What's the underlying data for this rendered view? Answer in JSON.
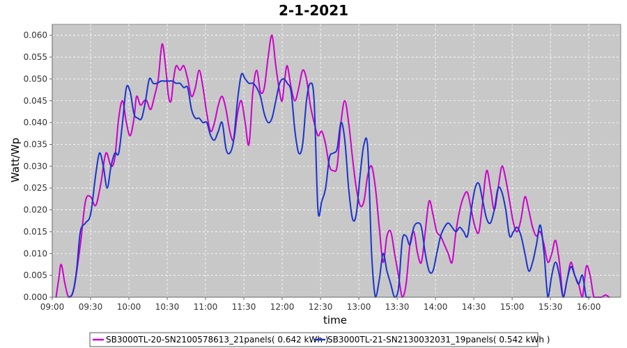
{
  "chart_data": {
    "type": "line",
    "title": "2-1-2021",
    "xlabel": "time",
    "ylabel": "Watt/Wp",
    "xlim": [
      "09:00",
      "16:25"
    ],
    "ylim": [
      0,
      0.0625
    ],
    "x_ticks": [
      "09:00",
      "09:30",
      "10:00",
      "10:30",
      "11:00",
      "11:30",
      "12:00",
      "12:30",
      "13:00",
      "13:30",
      "14:00",
      "14:30",
      "15:00",
      "15:30",
      "16:00"
    ],
    "y_ticks": [
      "0.000",
      "0.005",
      "0.010",
      "0.015",
      "0.020",
      "0.025",
      "0.030",
      "0.035",
      "0.040",
      "0.045",
      "0.050",
      "0.055",
      "0.060"
    ],
    "grid": true,
    "legend_position": "bottom",
    "series": [
      {
        "name": "SB3000TL-20-SN2100578613_21panels( 0.642 kWh )",
        "color": "#cc00cc",
        "x": [
          "09:03",
          "09:05",
          "09:07",
          "09:10",
          "09:13",
          "09:17",
          "09:22",
          "09:26",
          "09:30",
          "09:34",
          "09:38",
          "09:42",
          "09:46",
          "09:49",
          "09:52",
          "09:55",
          "09:58",
          "10:01",
          "10:04",
          "10:06",
          "10:09",
          "10:12",
          "10:14",
          "10:17",
          "10:20",
          "10:23",
          "10:26",
          "10:29",
          "10:31",
          "10:33",
          "10:35",
          "10:37",
          "10:40",
          "10:43",
          "10:46",
          "10:49",
          "10:52",
          "10:55",
          "10:58",
          "11:01",
          "11:04",
          "11:07",
          "11:10",
          "11:13",
          "11:16",
          "11:19",
          "11:22",
          "11:25",
          "11:28",
          "11:31",
          "11:34",
          "11:37",
          "11:40",
          "11:43",
          "11:46",
          "11:49",
          "11:52",
          "11:55",
          "11:58",
          "12:00",
          "12:02",
          "12:04",
          "12:07",
          "12:10",
          "12:13",
          "12:16",
          "12:19",
          "12:22",
          "12:25",
          "12:28",
          "12:31",
          "12:34",
          "12:37",
          "12:40",
          "12:43",
          "12:46",
          "12:49",
          "12:52",
          "12:55",
          "12:58",
          "13:01",
          "13:04",
          "13:07",
          "13:10",
          "13:13",
          "13:16",
          "13:19",
          "13:22",
          "13:25",
          "13:28",
          "13:31",
          "13:34",
          "13:37",
          "13:40",
          "13:43",
          "13:46",
          "13:49",
          "13:52",
          "13:55",
          "13:58",
          "14:01",
          "14:04",
          "14:07",
          "14:10",
          "14:13",
          "14:16",
          "14:19",
          "14:22",
          "14:25",
          "14:28",
          "14:31",
          "14:34",
          "14:37",
          "14:40",
          "14:43",
          "14:46",
          "14:49",
          "14:52",
          "14:55",
          "14:58",
          "15:01",
          "15:04",
          "15:07",
          "15:10",
          "15:13",
          "15:16",
          "15:19",
          "15:22",
          "15:25",
          "15:28",
          "15:31",
          "15:34",
          "15:37",
          "15:40",
          "15:43",
          "15:46",
          "15:49",
          "15:52",
          "15:55",
          "15:58",
          "16:01",
          "16:04",
          "16:07",
          "16:10",
          "16:13",
          "16:16"
        ],
        "y": [
          0.0,
          0.004,
          0.0075,
          0.003,
          0.0,
          0.002,
          0.012,
          0.022,
          0.023,
          0.021,
          0.026,
          0.033,
          0.03,
          0.032,
          0.041,
          0.045,
          0.04,
          0.037,
          0.041,
          0.046,
          0.044,
          0.045,
          0.045,
          0.043,
          0.046,
          0.05,
          0.058,
          0.052,
          0.046,
          0.045,
          0.05,
          0.053,
          0.052,
          0.053,
          0.05,
          0.046,
          0.048,
          0.052,
          0.048,
          0.042,
          0.038,
          0.04,
          0.044,
          0.046,
          0.043,
          0.038,
          0.036,
          0.042,
          0.045,
          0.04,
          0.035,
          0.047,
          0.052,
          0.047,
          0.048,
          0.055,
          0.06,
          0.053,
          0.047,
          0.045,
          0.05,
          0.053,
          0.048,
          0.045,
          0.048,
          0.052,
          0.05,
          0.044,
          0.04,
          0.037,
          0.038,
          0.035,
          0.03,
          0.029,
          0.03,
          0.04,
          0.045,
          0.04,
          0.032,
          0.025,
          0.021,
          0.022,
          0.028,
          0.03,
          0.025,
          0.016,
          0.008,
          0.014,
          0.015,
          0.01,
          0.005,
          0.0,
          0.003,
          0.012,
          0.015,
          0.01,
          0.008,
          0.015,
          0.022,
          0.019,
          0.015,
          0.014,
          0.012,
          0.01,
          0.008,
          0.015,
          0.02,
          0.023,
          0.024,
          0.02,
          0.016,
          0.015,
          0.022,
          0.029,
          0.025,
          0.02,
          0.025,
          0.03,
          0.027,
          0.022,
          0.017,
          0.015,
          0.018,
          0.023,
          0.02,
          0.016,
          0.014,
          0.015,
          0.012,
          0.008,
          0.01,
          0.013,
          0.008,
          0.0,
          0.004,
          0.008,
          0.005,
          0.003,
          0.0,
          0.007,
          0.005,
          0.0,
          0.0,
          0.0,
          0.0005,
          0.0
        ]
      },
      {
        "name": "SB3000TL-21-SN2130032031_19panels( 0.542 kWh )",
        "color": "#1a33cc",
        "x": [
          "09:13",
          "09:16",
          "09:19",
          "09:22",
          "09:26",
          "09:30",
          "09:34",
          "09:37",
          "09:40",
          "09:43",
          "09:46",
          "09:49",
          "09:52",
          "09:55",
          "09:58",
          "10:01",
          "10:04",
          "10:07",
          "10:10",
          "10:13",
          "10:16",
          "10:19",
          "10:22",
          "10:25",
          "10:28",
          "10:31",
          "10:34",
          "10:37",
          "10:40",
          "10:43",
          "10:46",
          "10:49",
          "10:52",
          "10:55",
          "10:58",
          "11:01",
          "11:04",
          "11:07",
          "11:10",
          "11:13",
          "11:16",
          "11:19",
          "11:22",
          "11:25",
          "11:28",
          "11:31",
          "11:34",
          "11:37",
          "11:40",
          "11:43",
          "11:46",
          "11:49",
          "11:52",
          "11:55",
          "11:58",
          "12:01",
          "12:04",
          "12:07",
          "12:10",
          "12:13",
          "12:16",
          "12:19",
          "12:22",
          "12:25",
          "12:28",
          "12:31",
          "12:34",
          "12:37",
          "12:40",
          "12:43",
          "12:46",
          "12:49",
          "12:52",
          "12:55",
          "12:58",
          "13:01",
          "13:04",
          "13:07",
          "13:10",
          "13:13",
          "13:16",
          "13:19",
          "13:22",
          "13:25",
          "13:28",
          "13:31",
          "13:34",
          "13:37",
          "13:40",
          "13:43",
          "13:46",
          "13:49",
          "13:52",
          "13:55",
          "13:58",
          "14:01",
          "14:04",
          "14:07",
          "14:10",
          "14:13",
          "14:16",
          "14:19",
          "14:22",
          "14:25",
          "14:28",
          "14:31",
          "14:34",
          "14:37",
          "14:40",
          "14:43",
          "14:46",
          "14:49",
          "14:52",
          "14:55",
          "14:58",
          "15:01",
          "15:04",
          "15:07",
          "15:10",
          "15:13",
          "15:16",
          "15:19",
          "15:22",
          "15:25",
          "15:28",
          "15:31",
          "15:34",
          "15:37",
          "15:40",
          "15:43",
          "15:46",
          "15:49",
          "15:52",
          "15:55",
          "15:58",
          "16:01"
        ],
        "y": [
          0.0,
          0.001,
          0.006,
          0.015,
          0.017,
          0.019,
          0.028,
          0.033,
          0.03,
          0.025,
          0.03,
          0.033,
          0.033,
          0.04,
          0.048,
          0.047,
          0.042,
          0.041,
          0.041,
          0.045,
          0.05,
          0.049,
          0.049,
          0.0495,
          0.0495,
          0.0495,
          0.0495,
          0.049,
          0.049,
          0.048,
          0.048,
          0.043,
          0.041,
          0.041,
          0.04,
          0.04,
          0.037,
          0.036,
          0.038,
          0.04,
          0.034,
          0.033,
          0.036,
          0.045,
          0.051,
          0.05,
          0.049,
          0.049,
          0.048,
          0.046,
          0.042,
          0.04,
          0.041,
          0.045,
          0.049,
          0.05,
          0.049,
          0.047,
          0.038,
          0.033,
          0.035,
          0.045,
          0.049,
          0.045,
          0.02,
          0.022,
          0.025,
          0.032,
          0.033,
          0.034,
          0.04,
          0.036,
          0.025,
          0.018,
          0.019,
          0.028,
          0.035,
          0.034,
          0.01,
          0.0,
          0.004,
          0.01,
          0.006,
          0.003,
          0.0,
          0.002,
          0.013,
          0.014,
          0.012,
          0.016,
          0.017,
          0.016,
          0.01,
          0.006,
          0.006,
          0.01,
          0.014,
          0.016,
          0.017,
          0.016,
          0.015,
          0.016,
          0.015,
          0.014,
          0.02,
          0.025,
          0.026,
          0.022,
          0.018,
          0.017,
          0.02,
          0.025,
          0.024,
          0.02,
          0.014,
          0.015,
          0.016,
          0.014,
          0.01,
          0.006,
          0.008,
          0.012,
          0.0165,
          0.01,
          0.0,
          0.005,
          0.008,
          0.005,
          0.0,
          0.004,
          0.007,
          0.005,
          0.003,
          0.005,
          0.0,
          0.0
        ]
      }
    ]
  }
}
